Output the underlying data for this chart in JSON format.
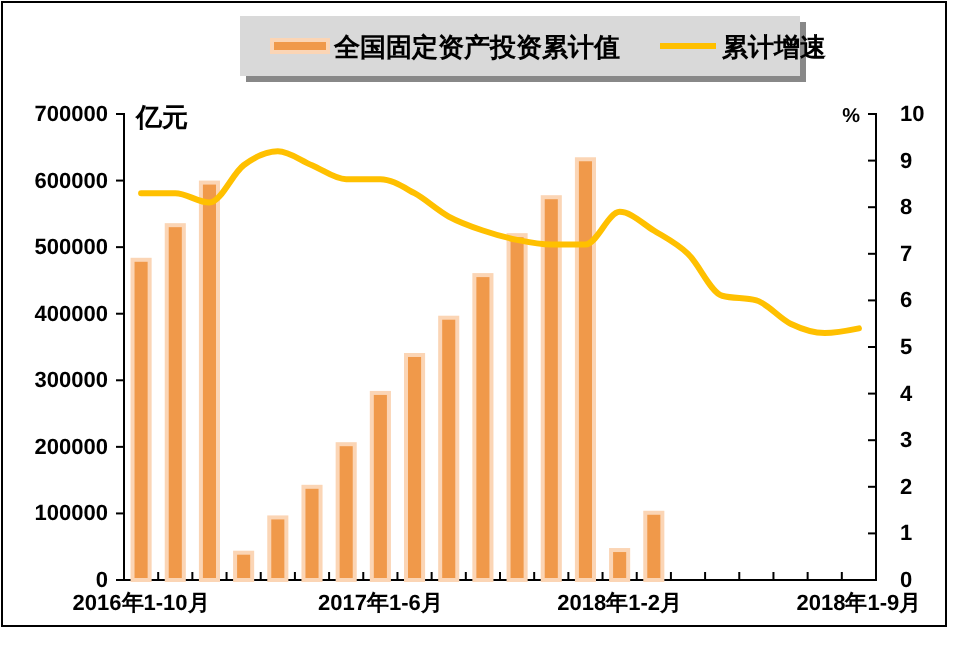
{
  "chart_data": {
    "type": "bar",
    "categories": [
      "2016年1-10月",
      null,
      null,
      null,
      null,
      null,
      null,
      "2017年1-6月",
      null,
      null,
      null,
      null,
      null,
      null,
      "2018年1-2月",
      null,
      null,
      null,
      null,
      null,
      null,
      "2018年1-9月"
    ],
    "series": [
      {
        "name": "全国固定资产投资累计值",
        "color": "#f0994a",
        "values": [
          481000,
          533000,
          597000,
          41000,
          94000,
          140000,
          204000,
          281000,
          338000,
          394000,
          458000,
          518000,
          575000,
          632000,
          45000,
          101000,
          null,
          null,
          null,
          null,
          null,
          null
        ]
      },
      {
        "name": "累计增速",
        "type": "line",
        "axis": "y2",
        "color": "#ffc000",
        "values": [
          8.3,
          8.3,
          8.1,
          8.9,
          9.2,
          8.9,
          8.6,
          8.6,
          8.3,
          7.8,
          7.5,
          7.3,
          7.2,
          7.2,
          7.9,
          7.5,
          7.0,
          6.1,
          6.0,
          5.5,
          5.3,
          5.4
        ]
      }
    ],
    "ylabel": "亿元",
    "y2label": "%",
    "ylim": [
      0,
      700000
    ],
    "yticks": [
      0,
      100000,
      200000,
      300000,
      400000,
      500000,
      600000,
      700000
    ],
    "y2lim": [
      0,
      10
    ],
    "y2ticks": [
      0,
      1,
      2,
      3,
      4,
      5,
      6,
      7,
      8,
      9,
      10
    ],
    "legend": "top",
    "grid": false,
    "marker": "none",
    "line_style": "solid"
  }
}
